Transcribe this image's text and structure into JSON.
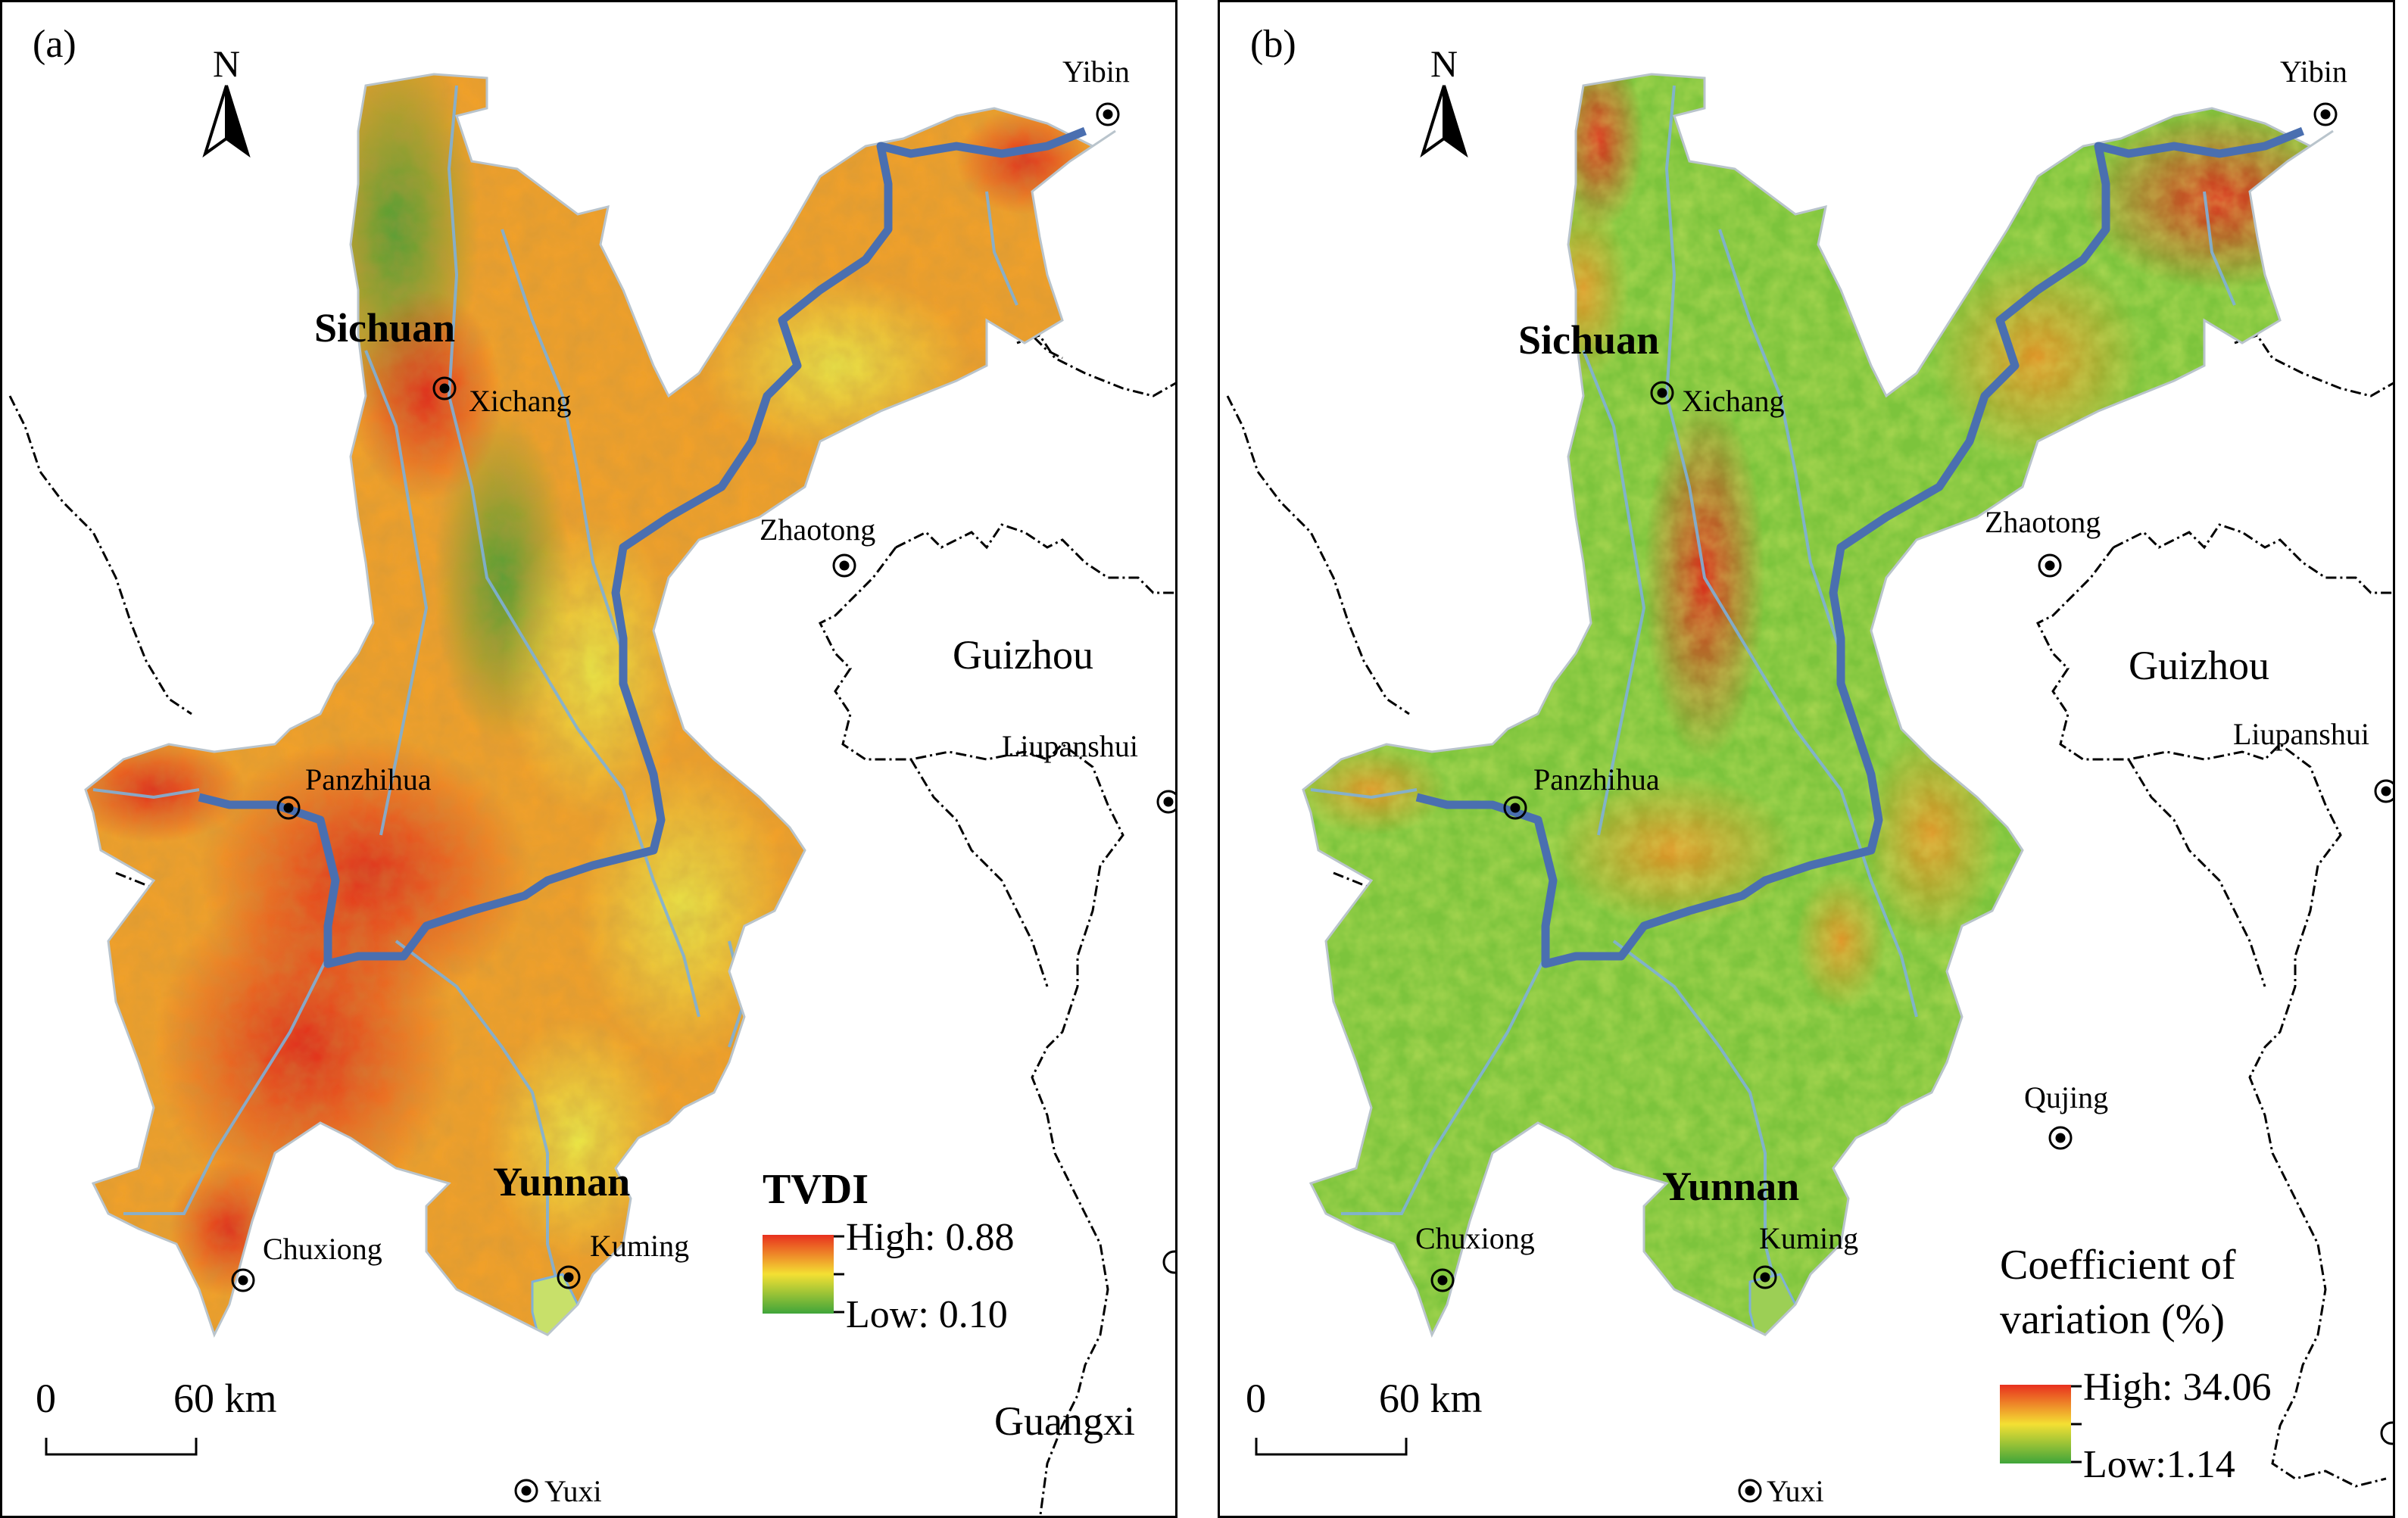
{
  "panels": [
    {
      "letter": "(a)",
      "north": "N",
      "provinces": {
        "sichuan": "Sichuan",
        "yunnan": "Yunnan",
        "guizhou": "Guizhou",
        "guangxi": "Guangxi"
      },
      "cities": {
        "yibin": "Yibin",
        "xichang": "Xichang",
        "zhaotong": "Zhaotong",
        "liupanshui": "Liupanshui",
        "panzhihua": "Panzhihua",
        "chuxiong": "Chuxiong",
        "kuming": "Kuming",
        "yuxi": "Yuxi"
      },
      "scale": {
        "zero": "0",
        "end": "60 km"
      },
      "legend": {
        "title": "TVDI",
        "high": "High: 0.88",
        "low": "Low: 0.10"
      },
      "colors": {
        "high": "#e8301e",
        "mid": "#f4e033",
        "low": "#3fa53a"
      }
    },
    {
      "letter": "(b)",
      "north": "N",
      "provinces": {
        "sichuan": "Sichuan",
        "yunnan": "Yunnan",
        "guizhou": "Guizhou"
      },
      "cities": {
        "yibin": "Yibin",
        "xichang": "Xichang",
        "zhaotong": "Zhaotong",
        "liupanshui": "Liupanshui",
        "panzhihua": "Panzhihua",
        "qujing": "Qujing",
        "chuxiong": "Chuxiong",
        "kuming": "Kuming",
        "yuxi": "Yuxi"
      },
      "scale": {
        "zero": "0",
        "end": "60 km"
      },
      "legend": {
        "title_line1": "Coefficient of",
        "title_line2": "variation (%)",
        "high": "High: 34.06",
        "low": "Low:1.14"
      },
      "colors": {
        "high": "#e8301e",
        "mid": "#f4e033",
        "low": "#3fa53a"
      }
    }
  ]
}
